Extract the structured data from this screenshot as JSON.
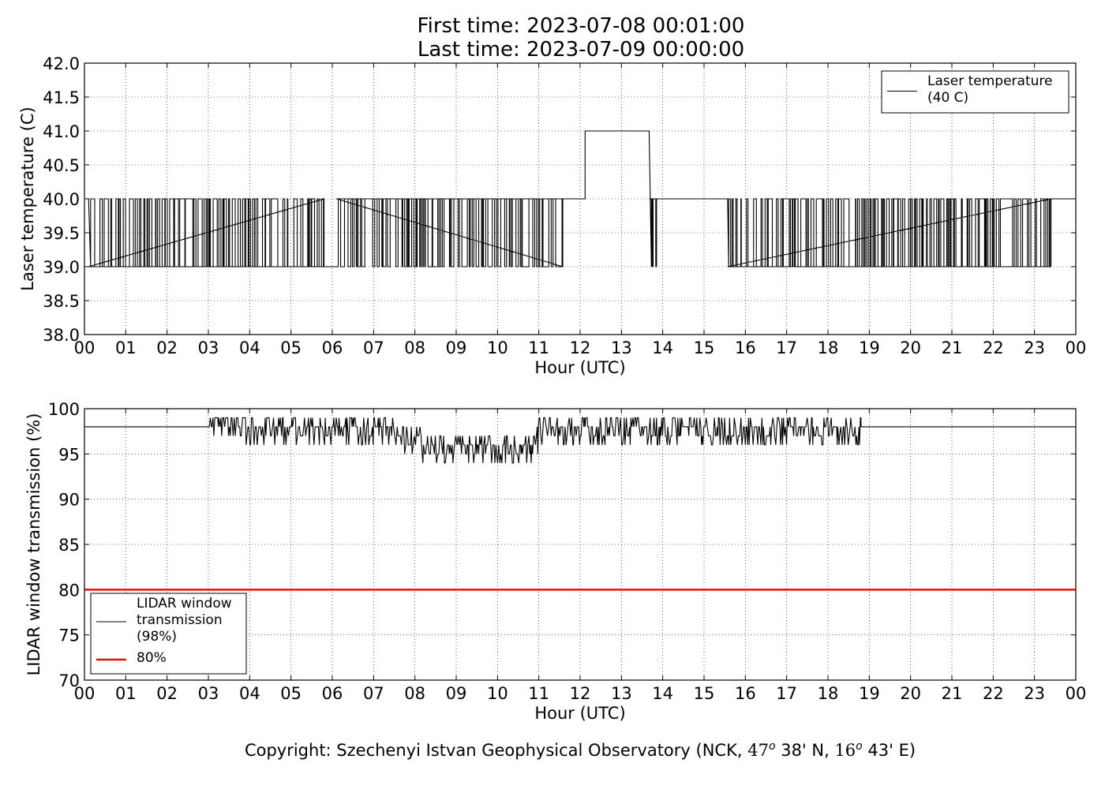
{
  "header": {
    "title_line1": "First time: 2023-07-08 00:01:00",
    "title_line2": "Last time: 2023-07-09 00:00:00"
  },
  "footer": {
    "prefix": "Copyright: Szechenyi Istvan Geophysical Observatory (NCK, ",
    "lat_deg": "47",
    "lat_rest": " 38' N, ",
    "lon_deg": "16",
    "lon_rest": " 43' E)",
    "degree_mark": "o"
  },
  "chart_data": [
    {
      "type": "line",
      "xlabel": "Hour (UTC)",
      "ylabel": "Laser temperature (C)",
      "xticks": [
        "00",
        "01",
        "02",
        "03",
        "04",
        "05",
        "06",
        "07",
        "08",
        "09",
        "10",
        "11",
        "12",
        "13",
        "14",
        "15",
        "16",
        "17",
        "18",
        "19",
        "20",
        "21",
        "22",
        "23",
        "00"
      ],
      "xlim": [
        0,
        24
      ],
      "ylim": [
        38.0,
        42.0
      ],
      "yticks": [
        "38.0",
        "38.5",
        "39.0",
        "39.5",
        "40.0",
        "40.5",
        "41.0",
        "41.5",
        "42.0"
      ],
      "grid": true,
      "legend_position": "top-right",
      "series": [
        {
          "name": "Laser temperature (40 C)",
          "legend_lines": [
            "Laser temperature",
            "(40 C)"
          ],
          "color": "#000000",
          "x": [
            0.0,
            0.1,
            0.1,
            0.3,
            0.3,
            0.45,
            0.45,
            0.6,
            0.6,
            1.0,
            1.0,
            1.8,
            1.8,
            2.3,
            2.3,
            2.55,
            2.55,
            3.1,
            3.1,
            4.0,
            4.0,
            5.0,
            5.0,
            5.8,
            5.8,
            6.1,
            6.1,
            7.0,
            7.0,
            8.0,
            8.0,
            9.0,
            9.0,
            10.0,
            10.0,
            11.0,
            11.0,
            11.58,
            11.58,
            12.12,
            12.12,
            13.67,
            13.67,
            13.85,
            13.85,
            15.57,
            15.57,
            16.5,
            16.5,
            17.3,
            17.3,
            18.0,
            18.0,
            19.0,
            19.0,
            20.0,
            20.0,
            21.0,
            21.0,
            22.0,
            22.0,
            23.0,
            23.0,
            23.4,
            23.4,
            24.0
          ],
          "y": [
            40.0,
            40.0,
            39.0,
            39.0,
            40.0,
            40.0,
            39.0,
            39.0,
            40.0,
            40.0,
            39.0,
            39.0,
            40.0,
            40.0,
            39.0,
            39.0,
            40.0,
            40.0,
            39.0,
            39.0,
            40.0,
            40.0,
            39.0,
            39.0,
            39.0,
            39.0,
            40.0,
            40.0,
            39.0,
            39.0,
            40.0,
            40.0,
            39.0,
            39.0,
            40.0,
            40.0,
            39.0,
            39.0,
            40.0,
            40.0,
            41.0,
            41.0,
            40.0,
            40.0,
            40.0,
            40.0,
            39.0,
            39.0,
            40.0,
            40.0,
            39.0,
            39.0,
            40.0,
            40.0,
            39.0,
            39.0,
            40.0,
            40.0,
            39.0,
            39.0,
            40.0,
            40.0,
            39.0,
            39.0,
            40.0,
            40.0
          ],
          "noisy_spans": [
            [
              0.1,
              5.8
            ],
            [
              6.1,
              11.58
            ],
            [
              13.67,
              13.85
            ],
            [
              15.57,
              23.4
            ]
          ],
          "noise_levels": [
            39.0,
            40.0
          ]
        }
      ]
    },
    {
      "type": "line",
      "xlabel": "Hour (UTC)",
      "ylabel": "LIDAR window transmission (%)",
      "xticks": [
        "00",
        "01",
        "02",
        "03",
        "04",
        "05",
        "06",
        "07",
        "08",
        "09",
        "10",
        "11",
        "12",
        "13",
        "14",
        "15",
        "16",
        "17",
        "18",
        "19",
        "20",
        "21",
        "22",
        "23",
        "00"
      ],
      "xlim": [
        0,
        24
      ],
      "ylim": [
        70,
        100
      ],
      "yticks": [
        "70",
        "75",
        "80",
        "85",
        "90",
        "95",
        "100"
      ],
      "grid": true,
      "legend_position": "bottom-left",
      "series": [
        {
          "name": "LIDAR window transmission (98%)",
          "legend_lines": [
            "LIDAR window",
            "transmission",
            "(98%)"
          ],
          "color": "#000000",
          "x": [
            0.0,
            3.0,
            3.0,
            4.0,
            4.5,
            5.0,
            6.0,
            7.0,
            7.5,
            8.0,
            8.3,
            8.7,
            9.0,
            9.5,
            10.0,
            10.3,
            10.8,
            11.0,
            11.5,
            12.0,
            13.0,
            14.0,
            15.0,
            16.0,
            17.0,
            18.0,
            18.8,
            18.8,
            24.0
          ],
          "y": [
            98,
            98,
            99,
            98,
            98,
            98,
            98,
            98,
            97.5,
            97,
            96,
            96,
            96,
            95.5,
            95.5,
            96.5,
            96,
            97.5,
            98,
            98,
            98,
            98,
            98,
            98,
            98,
            98,
            98,
            98,
            98
          ],
          "noisy_spans": [
            [
              3.0,
              18.8
            ]
          ]
        },
        {
          "name": "80%",
          "legend_lines": [
            "80%"
          ],
          "color": "#dd1111",
          "x": [
            0,
            24
          ],
          "y": [
            80,
            80
          ]
        }
      ]
    }
  ]
}
